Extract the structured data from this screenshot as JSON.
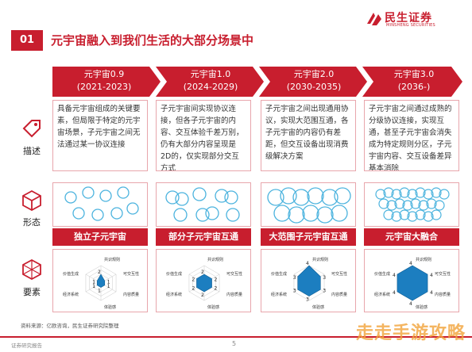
{
  "header": {
    "logo_cn": "民生证券",
    "logo_en": "MINSHENG SECURITIES",
    "section_number": "01",
    "title": "元宇宙融入到我们生活的大部分场景中"
  },
  "colors": {
    "brand_red": "#c81e2e",
    "chevron_red": "#c81e2e",
    "circle_blue": "#4bb3de",
    "radar_fill": "#1c7ec0"
  },
  "phases": [
    {
      "name": "元宇宙0.9",
      "period": "(2021-2023)"
    },
    {
      "name": "元宇宙1.0",
      "period": "(2024-2029)"
    },
    {
      "name": "元宇宙2.0",
      "period": "(2030-2035)"
    },
    {
      "name": "元宇宙3.0",
      "period": "(2036-)"
    }
  ],
  "rows": {
    "describe": {
      "label": "描述",
      "icon": "tag-icon"
    },
    "form": {
      "label": "形态",
      "icon": "cube-icon"
    },
    "elements": {
      "label": "要素",
      "icon": "hexagon-network-icon"
    }
  },
  "descriptions": [
    "具备元宇宙组成的关键要素，但局限于特定的元宇宙场景，子元宇宙之间无法通过某一协议连接",
    "子元宇宙间实现协议连接，但各子元宇宙的内容、交互体验千差万别，仍有大部分内容呈现是2D的，仅实现部分交互方式",
    "子元宇宙之间出现通用协议，实现大范围互通，各子元宇宙的内容仍有差距，但交互设备出现消费级解决方案",
    "子元宇宙之间通过成熟的分级协议连接，实现互通，甚至子元宇宙会消失成为特定规则分区，子元宇宙内容、交互设备差异基本消除"
  ],
  "forms": [
    "独立子元宇宙",
    "部分子元宇宙互通",
    "大范围子元宇宙互通",
    "元宇宙大融合"
  ],
  "radar": {
    "axes": [
      "共识规则",
      "可交互性",
      "内容质量",
      "体验感",
      "经济系统",
      "价值生成"
    ],
    "stages": [
      [
        2,
        1,
        1,
        1,
        1,
        1
      ],
      [
        2,
        2,
        2,
        2,
        2,
        2
      ],
      [
        4,
        3,
        3,
        3,
        3,
        3
      ],
      [
        4,
        4,
        4,
        4,
        4,
        4
      ]
    ],
    "max": 4
  },
  "source": "资料来源：亿欧咨询，民生证券研究院整理",
  "footer": {
    "left": "证券研究报告",
    "page": "5"
  },
  "watermark": "走走手游攻略"
}
